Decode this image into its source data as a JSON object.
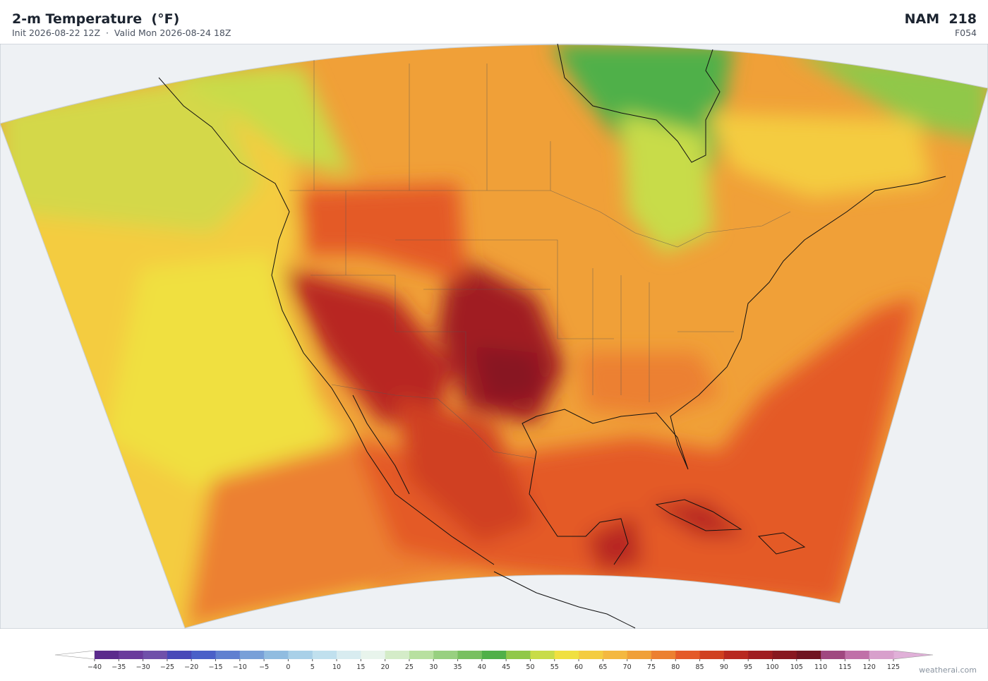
{
  "header": {
    "title": "2-m Temperature  (°F)",
    "subtitle": "Init 2026-08-22 12Z  ·  Valid Mon 2026-08-24 18Z",
    "model": "NAM  218",
    "forecast_hour": "F054"
  },
  "colorbar": {
    "ticks": [
      {
        "value": -40,
        "label": "−40"
      },
      {
        "value": -35,
        "label": "−35"
      },
      {
        "value": -30,
        "label": "−30"
      },
      {
        "value": -25,
        "label": "−25"
      },
      {
        "value": -20,
        "label": "−20"
      },
      {
        "value": -15,
        "label": "−15"
      },
      {
        "value": -10,
        "label": "−10"
      },
      {
        "value": -5,
        "label": "−5"
      },
      0,
      5,
      10,
      15,
      20,
      25,
      30,
      35,
      40,
      45,
      50,
      55,
      60,
      65,
      70,
      75,
      80,
      85,
      90,
      95,
      100,
      105,
      110,
      115,
      120,
      125
    ],
    "colors": [
      "#5b2a8c",
      "#6a3a9c",
      "#7050aa",
      "#4848b8",
      "#4a60c8",
      "#6080d0",
      "#78a0d8",
      "#90bce0",
      "#a8d0e8",
      "#c0e0ee",
      "#d8ecf0",
      "#e8f4ec",
      "#d4ecc8",
      "#b8e0a0",
      "#98d080",
      "#78c060",
      "#50b048",
      "#90c848",
      "#c8dc48",
      "#f0e040",
      "#f4cc40",
      "#f4b840",
      "#f0a038",
      "#ec8030",
      "#e45a28",
      "#d04020",
      "#b82820",
      "#a01c20",
      "#881820",
      "#701420",
      "#a04880",
      "#c070a8",
      "#d8a0cc"
    ],
    "under_color": "#ffffff",
    "over_color": "#e0b0d8"
  },
  "footer": {
    "credit": "weatherai.com"
  }
}
